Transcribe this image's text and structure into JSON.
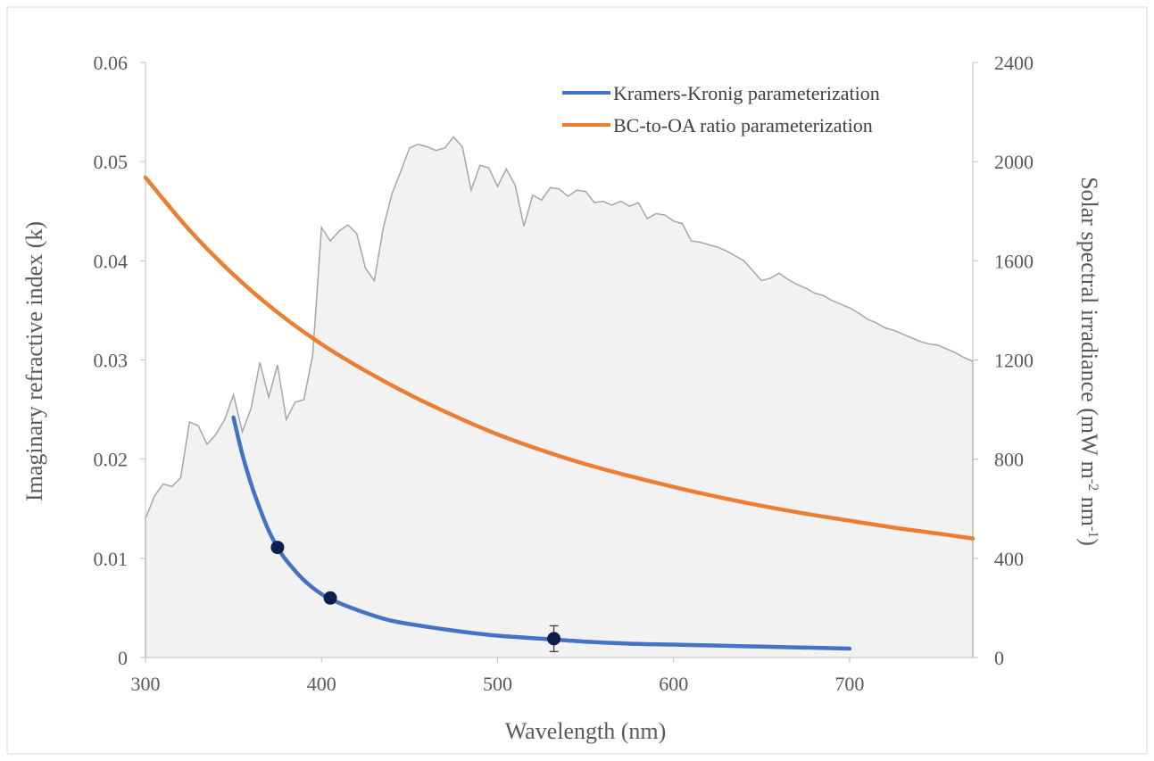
{
  "chart_data": {
    "type": "line",
    "title": "",
    "xlabel": "Wavelength (nm)",
    "ylabel": "Imaginary refractive index (k)",
    "y2label": {
      "prefix": "Solar spectral irradiance (mW m",
      "exp1": "-2",
      "mid": " nm",
      "exp2": "-1",
      "suffix": ")"
    },
    "xlim": [
      300,
      770
    ],
    "ylim": [
      0,
      0.06
    ],
    "y2lim": [
      0,
      2400
    ],
    "x_ticks": [
      300,
      400,
      500,
      600,
      700
    ],
    "y_ticks": [
      0,
      0.01,
      0.02,
      0.03,
      0.04,
      0.05,
      0.06
    ],
    "y_tick_labels": [
      "0",
      "0.01",
      "0.02",
      "0.03",
      "0.04",
      "0.05",
      "0.06"
    ],
    "y2_ticks": [
      0,
      400,
      800,
      1200,
      1600,
      2000,
      2400
    ],
    "grid": false,
    "legend_position": "top-right",
    "colors": {
      "kk": "#4472c4",
      "bc": "#ed7d31",
      "solar_fill": "#f2f2f2",
      "solar_line": "#a6a6a6",
      "points": "#0b1f4d",
      "axis": "#bfbfbf"
    },
    "series": [
      {
        "name": "Kramers-Kronig parameterization",
        "type": "line",
        "axis": "left",
        "x": [
          350,
          355,
          360,
          365,
          370,
          375,
          380,
          390,
          400,
          410,
          425,
          440,
          460,
          480,
          500,
          525,
          550,
          575,
          600,
          625,
          650,
          675,
          700
        ],
        "y": [
          0.0242,
          0.0205,
          0.0175,
          0.015,
          0.0128,
          0.0111,
          0.0098,
          0.0078,
          0.0064,
          0.0055,
          0.0045,
          0.0037,
          0.0031,
          0.0026,
          0.0022,
          0.0019,
          0.0016,
          0.0014,
          0.0013,
          0.0012,
          0.0011,
          0.001,
          0.0009
        ]
      },
      {
        "name": "BC-to-OA ratio parameterization",
        "type": "line",
        "axis": "left",
        "x": [
          300,
          325,
          350,
          375,
          400,
          425,
          450,
          475,
          500,
          525,
          550,
          575,
          600,
          625,
          650,
          675,
          700,
          725,
          750,
          770
        ],
        "y": [
          0.0484,
          0.0431,
          0.0386,
          0.0348,
          0.0316,
          0.0289,
          0.0265,
          0.0244,
          0.0225,
          0.0209,
          0.0195,
          0.0183,
          0.0172,
          0.0162,
          0.0153,
          0.0145,
          0.0138,
          0.0131,
          0.0125,
          0.012
        ]
      },
      {
        "name": "",
        "type": "area",
        "axis": "right",
        "x": [
          300,
          305,
          310,
          315,
          320,
          325,
          330,
          335,
          340,
          345,
          350,
          355,
          360,
          365,
          370,
          375,
          380,
          385,
          390,
          395,
          400,
          405,
          410,
          415,
          420,
          425,
          430,
          435,
          440,
          445,
          450,
          455,
          460,
          465,
          470,
          475,
          480,
          485,
          490,
          495,
          500,
          505,
          510,
          515,
          520,
          525,
          530,
          535,
          540,
          545,
          550,
          555,
          560,
          565,
          570,
          575,
          580,
          585,
          590,
          595,
          600,
          605,
          610,
          615,
          620,
          625,
          630,
          635,
          640,
          645,
          650,
          655,
          660,
          665,
          670,
          675,
          680,
          685,
          690,
          695,
          700,
          705,
          710,
          715,
          720,
          725,
          730,
          735,
          740,
          745,
          750,
          755,
          760,
          765,
          770
        ],
        "y": [
          560,
          650,
          700,
          690,
          725,
          950,
          935,
          860,
          900,
          960,
          1060,
          910,
          1005,
          1190,
          1050,
          1180,
          960,
          1030,
          1040,
          1220,
          1735,
          1680,
          1720,
          1745,
          1710,
          1570,
          1520,
          1730,
          1870,
          1960,
          2055,
          2070,
          2060,
          2045,
          2055,
          2100,
          2060,
          1885,
          1985,
          1975,
          1900,
          1970,
          1905,
          1740,
          1865,
          1845,
          1895,
          1890,
          1860,
          1885,
          1880,
          1835,
          1840,
          1825,
          1840,
          1820,
          1835,
          1770,
          1790,
          1785,
          1760,
          1750,
          1680,
          1675,
          1665,
          1655,
          1640,
          1620,
          1600,
          1560,
          1520,
          1530,
          1550,
          1525,
          1505,
          1490,
          1470,
          1460,
          1440,
          1425,
          1410,
          1390,
          1365,
          1350,
          1330,
          1320,
          1305,
          1290,
          1275,
          1265,
          1260,
          1245,
          1230,
          1210,
          1195
        ]
      }
    ],
    "markers": [
      {
        "x": 375,
        "y": 0.0111,
        "err": null
      },
      {
        "x": 405,
        "y": 0.006,
        "err": null
      },
      {
        "x": 532,
        "y": 0.0019,
        "err": 0.0013
      }
    ]
  }
}
